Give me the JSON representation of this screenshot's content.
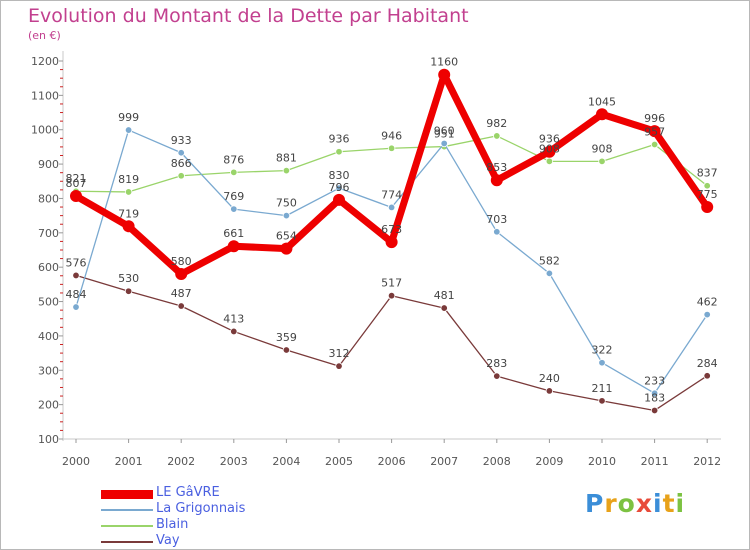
{
  "chart_data": {
    "type": "line",
    "title": "Evolution du Montant de la Dette par Habitant",
    "subtitle": "(en €)",
    "x": [
      "2000",
      "2001",
      "2002",
      "2003",
      "2004",
      "2005",
      "2006",
      "2007",
      "2008",
      "2009",
      "2010",
      "2011",
      "2012"
    ],
    "ylim": [
      100,
      1200
    ],
    "yticks": [
      100,
      200,
      300,
      400,
      500,
      600,
      700,
      800,
      900,
      1000,
      1100,
      1200
    ],
    "grid": false,
    "legend_position": "bottom-left",
    "series": [
      {
        "name": "LE GâVRE",
        "color": "#ee0000",
        "values": [
          807,
          719,
          580,
          661,
          654,
          796,
          673,
          1160,
          853,
          936,
          1045,
          996,
          775
        ]
      },
      {
        "name": "La Grigonnais",
        "color": "#7aa9d0",
        "values": [
          484,
          999,
          933,
          769,
          750,
          830,
          774,
          960,
          703,
          582,
          322,
          233,
          462
        ]
      },
      {
        "name": "Blain",
        "color": "#9ad46a",
        "values": [
          821,
          819,
          866,
          876,
          881,
          936,
          946,
          951,
          982,
          908,
          908,
          957,
          837
        ]
      },
      {
        "name": "Vay",
        "color": "#7a3a3a",
        "values": [
          576,
          530,
          487,
          413,
          359,
          312,
          517,
          481,
          283,
          240,
          211,
          183,
          284
        ]
      }
    ]
  },
  "logo": {
    "text": "Proxiti",
    "letters": [
      "P",
      "r",
      "o",
      "x",
      "i",
      "t",
      "i"
    ],
    "colors": [
      "#3b8ed8",
      "#e8a21a",
      "#7cc242",
      "#e84b3a",
      "#3b8ed8",
      "#e8a21a",
      "#7cc242"
    ]
  }
}
